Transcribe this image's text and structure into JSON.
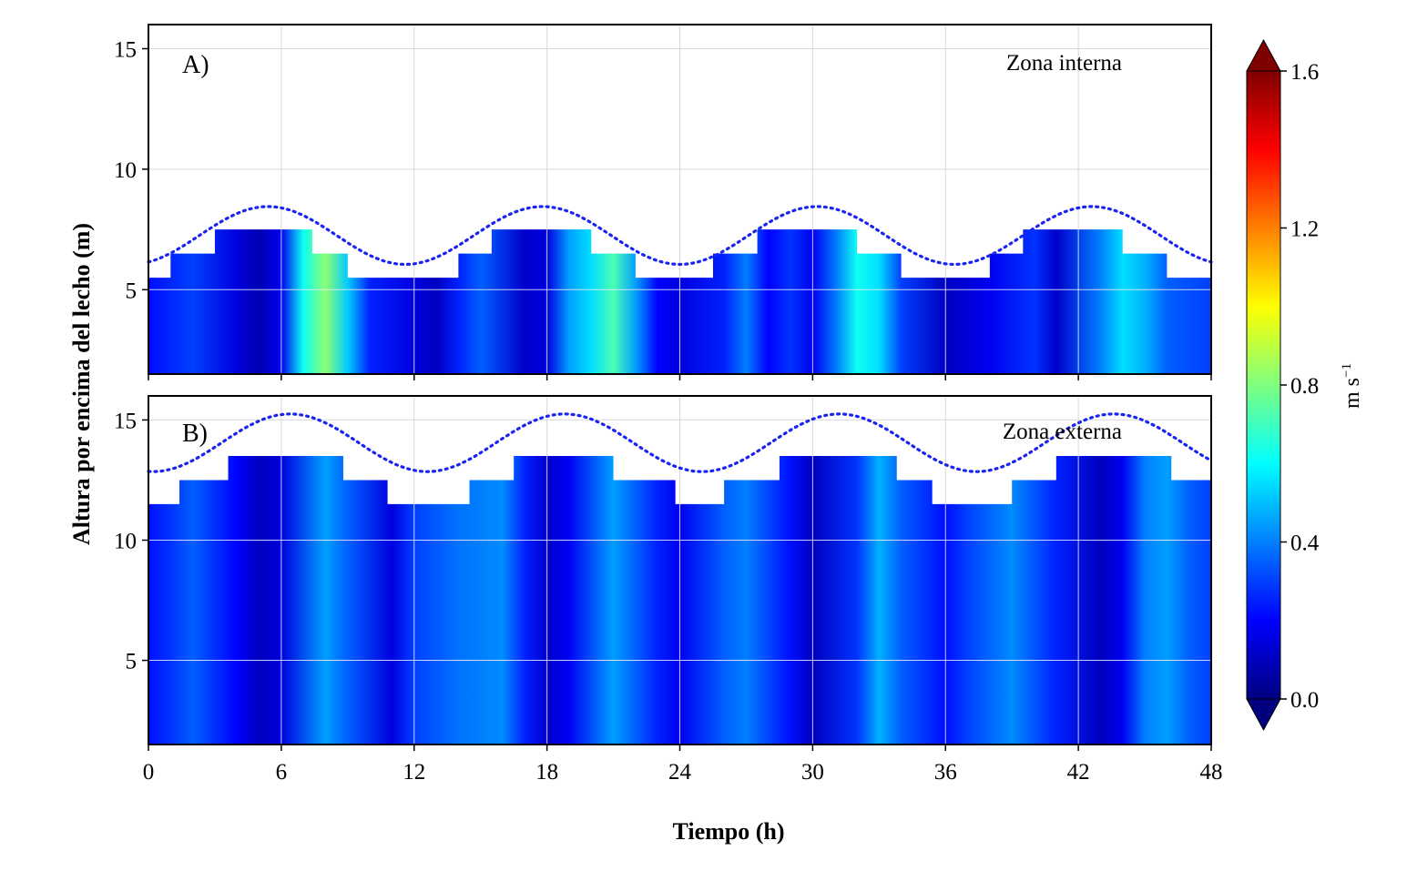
{
  "chart_data": [
    {
      "type": "heatmap",
      "panel_label": "A)",
      "zone_label": "Zona interna",
      "x_unit": "h",
      "xlim": [
        0,
        48
      ],
      "ylim": [
        1.5,
        16
      ],
      "xticks": [
        0,
        6,
        12,
        18,
        24,
        30,
        36,
        42,
        48
      ],
      "yticks": [
        5,
        10,
        15
      ],
      "grid": true,
      "profile_top": [
        {
          "x": 0,
          "y": 5.5
        },
        {
          "x": 1,
          "y": 6.5
        },
        {
          "x": 3,
          "y": 7.5
        },
        {
          "x": 7.4,
          "y": 6.5
        },
        {
          "x": 9,
          "y": 5.5
        },
        {
          "x": 14,
          "y": 6.5
        },
        {
          "x": 15.5,
          "y": 7.5
        },
        {
          "x": 20,
          "y": 6.5
        },
        {
          "x": 22,
          "y": 5.5
        },
        {
          "x": 25.5,
          "y": 6.5
        },
        {
          "x": 27.5,
          "y": 7.5
        },
        {
          "x": 32,
          "y": 6.5
        },
        {
          "x": 34,
          "y": 5.5
        },
        {
          "x": 38,
          "y": 6.5
        },
        {
          "x": 39.5,
          "y": 7.5
        },
        {
          "x": 44,
          "y": 6.5
        },
        {
          "x": 46,
          "y": 5.5
        }
      ],
      "water_level": {
        "mean": 7.25,
        "amplitude": 1.2,
        "period_h": 12.4,
        "peak_h": 5.4
      },
      "speed_columns": [
        {
          "x": 0,
          "v": 0.22
        },
        {
          "x": 2,
          "v": 0.3
        },
        {
          "x": 4,
          "v": 0.15
        },
        {
          "x": 5,
          "v": 0.08
        },
        {
          "x": 6,
          "v": 0.18
        },
        {
          "x": 7,
          "v": 0.62
        },
        {
          "x": 8,
          "v": 0.82
        },
        {
          "x": 9,
          "v": 0.52
        },
        {
          "x": 10,
          "v": 0.25
        },
        {
          "x": 12,
          "v": 0.15
        },
        {
          "x": 13,
          "v": 0.1
        },
        {
          "x": 14,
          "v": 0.25
        },
        {
          "x": 15,
          "v": 0.35
        },
        {
          "x": 17,
          "v": 0.12
        },
        {
          "x": 18,
          "v": 0.15
        },
        {
          "x": 19,
          "v": 0.45
        },
        {
          "x": 20,
          "v": 0.55
        },
        {
          "x": 21,
          "v": 0.72
        },
        {
          "x": 22,
          "v": 0.45
        },
        {
          "x": 23,
          "v": 0.2
        },
        {
          "x": 24,
          "v": 0.15
        },
        {
          "x": 26,
          "v": 0.25
        },
        {
          "x": 27,
          "v": 0.4
        },
        {
          "x": 28,
          "v": 0.2
        },
        {
          "x": 29,
          "v": 0.28
        },
        {
          "x": 30,
          "v": 0.18
        },
        {
          "x": 31,
          "v": 0.38
        },
        {
          "x": 32,
          "v": 0.62
        },
        {
          "x": 33,
          "v": 0.55
        },
        {
          "x": 34,
          "v": 0.3
        },
        {
          "x": 36,
          "v": 0.1
        },
        {
          "x": 38,
          "v": 0.18
        },
        {
          "x": 40,
          "v": 0.28
        },
        {
          "x": 41,
          "v": 0.12
        },
        {
          "x": 43,
          "v": 0.4
        },
        {
          "x": 44,
          "v": 0.55
        },
        {
          "x": 45,
          "v": 0.48
        },
        {
          "x": 46,
          "v": 0.35
        },
        {
          "x": 48,
          "v": 0.3
        }
      ]
    },
    {
      "type": "heatmap",
      "panel_label": "B)",
      "zone_label": "Zona externa",
      "x_unit": "h",
      "xlim": [
        0,
        48
      ],
      "ylim": [
        1.5,
        16
      ],
      "xticks": [
        0,
        6,
        12,
        18,
        24,
        30,
        36,
        42,
        48
      ],
      "yticks": [
        5,
        10,
        15
      ],
      "grid": true,
      "profile_top": [
        {
          "x": 0,
          "y": 11.5
        },
        {
          "x": 1.4,
          "y": 12.5
        },
        {
          "x": 3.6,
          "y": 13.5
        },
        {
          "x": 8.8,
          "y": 12.5
        },
        {
          "x": 10.8,
          "y": 11.5
        },
        {
          "x": 14.5,
          "y": 12.5
        },
        {
          "x": 16.5,
          "y": 13.5
        },
        {
          "x": 21,
          "y": 12.5
        },
        {
          "x": 23.8,
          "y": 11.5
        },
        {
          "x": 26,
          "y": 12.5
        },
        {
          "x": 28.5,
          "y": 13.5
        },
        {
          "x": 33.8,
          "y": 12.5
        },
        {
          "x": 35.4,
          "y": 11.5
        },
        {
          "x": 39,
          "y": 12.5
        },
        {
          "x": 41,
          "y": 13.5
        },
        {
          "x": 46.2,
          "y": 12.5
        },
        {
          "x": 48,
          "y": 12.5
        }
      ],
      "water_level": {
        "mean": 14.05,
        "amplitude": 1.2,
        "period_h": 12.4,
        "peak_h": 6.4
      },
      "speed_columns": [
        {
          "x": 0,
          "v": 0.22
        },
        {
          "x": 1,
          "v": 0.28
        },
        {
          "x": 2,
          "v": 0.35
        },
        {
          "x": 4,
          "v": 0.2
        },
        {
          "x": 5,
          "v": 0.1
        },
        {
          "x": 6,
          "v": 0.15
        },
        {
          "x": 8,
          "v": 0.45
        },
        {
          "x": 9,
          "v": 0.35
        },
        {
          "x": 11,
          "v": 0.15
        },
        {
          "x": 12,
          "v": 0.3
        },
        {
          "x": 14,
          "v": 0.38
        },
        {
          "x": 16,
          "v": 0.42
        },
        {
          "x": 17,
          "v": 0.25
        },
        {
          "x": 18,
          "v": 0.12
        },
        {
          "x": 19,
          "v": 0.18
        },
        {
          "x": 21,
          "v": 0.45
        },
        {
          "x": 23,
          "v": 0.25
        },
        {
          "x": 24,
          "v": 0.18
        },
        {
          "x": 26,
          "v": 0.35
        },
        {
          "x": 27,
          "v": 0.4
        },
        {
          "x": 29,
          "v": 0.22
        },
        {
          "x": 30,
          "v": 0.1
        },
        {
          "x": 32,
          "v": 0.28
        },
        {
          "x": 33,
          "v": 0.48
        },
        {
          "x": 34,
          "v": 0.35
        },
        {
          "x": 36,
          "v": 0.22
        },
        {
          "x": 37,
          "v": 0.3
        },
        {
          "x": 39,
          "v": 0.42
        },
        {
          "x": 41,
          "v": 0.25
        },
        {
          "x": 43,
          "v": 0.1
        },
        {
          "x": 44,
          "v": 0.18
        },
        {
          "x": 45,
          "v": 0.4
        },
        {
          "x": 46,
          "v": 0.45
        },
        {
          "x": 47,
          "v": 0.35
        },
        {
          "x": 48,
          "v": 0.3
        }
      ]
    }
  ],
  "axes": {
    "ylabel": "Altura por encima del lecho (m)",
    "xlabel": "Tiempo (h)"
  },
  "colorbar": {
    "title": "m s",
    "title_superscript": "−1",
    "range": [
      0.0,
      1.6
    ],
    "ticks": [
      "0.0",
      "0.4",
      "0.8",
      "1.2",
      "1.6"
    ],
    "colormap": "jet",
    "colors": [
      "#00007f",
      "#0000ff",
      "#007fff",
      "#00ffff",
      "#7fff7f",
      "#ffff00",
      "#ff7f00",
      "#ff0000",
      "#7f0000"
    ],
    "extend": "both"
  },
  "styles": {
    "water_line_color": "#1a24f0",
    "grid_color": "#d9d9d9"
  }
}
